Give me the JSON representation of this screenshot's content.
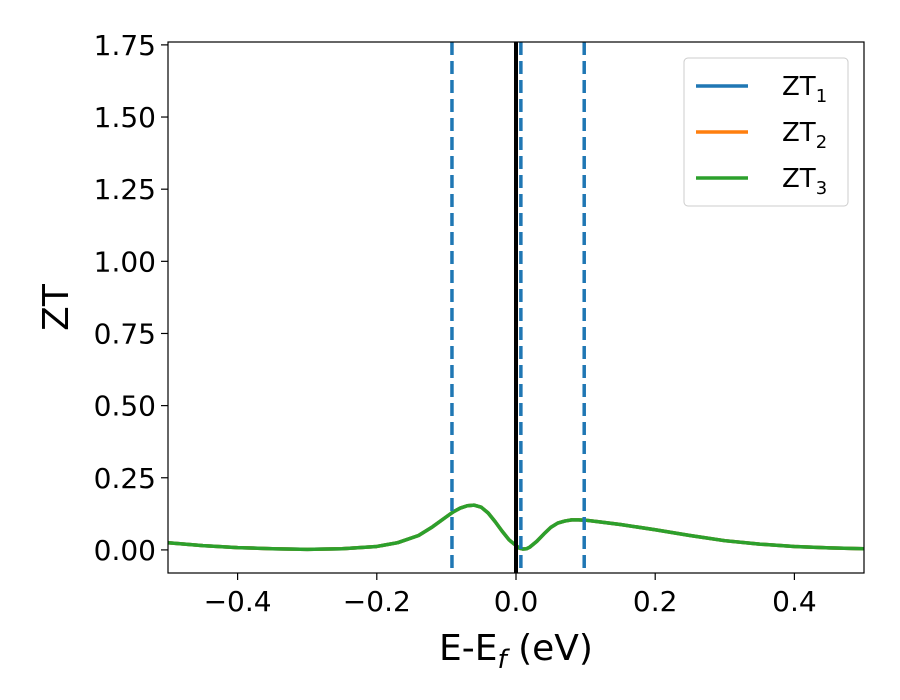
{
  "chart_data": {
    "type": "line",
    "title": "",
    "xlabel": "E-E",
    "xlabel_sub": "f",
    "xlabel_suffix": " (eV)",
    "ylabel": "ZT",
    "xlim": [
      -0.5,
      0.5
    ],
    "ylim": [
      -0.08,
      1.76
    ],
    "x_ticks": [
      -0.4,
      -0.2,
      0.0,
      0.2,
      0.4
    ],
    "x_tick_labels": [
      "−0.4",
      "−0.2",
      "0.0",
      "0.2",
      "0.4"
    ],
    "y_ticks": [
      0.0,
      0.25,
      0.5,
      0.75,
      1.0,
      1.25,
      1.5,
      1.75
    ],
    "y_tick_labels": [
      "0.00",
      "0.25",
      "0.50",
      "0.75",
      "1.00",
      "1.25",
      "1.50",
      "1.75"
    ],
    "grid": false,
    "legend_position": "top-right",
    "series": [
      {
        "name": "ZT",
        "sub": "1",
        "color": "#1f77b4",
        "x": [
          -0.5,
          -0.45,
          -0.4,
          -0.35,
          -0.3,
          -0.25,
          -0.2,
          -0.17,
          -0.14,
          -0.12,
          -0.1,
          -0.09,
          -0.08,
          -0.07,
          -0.06,
          -0.05,
          -0.04,
          -0.03,
          -0.02,
          -0.01,
          0.0,
          0.005,
          0.01,
          0.015,
          0.02,
          0.03,
          0.04,
          0.05,
          0.06,
          0.07,
          0.08,
          0.09,
          0.1,
          0.12,
          0.15,
          0.2,
          0.25,
          0.3,
          0.35,
          0.4,
          0.45,
          0.5
        ],
        "y": [
          0.025,
          0.015,
          0.008,
          0.004,
          0.002,
          0.004,
          0.012,
          0.025,
          0.05,
          0.08,
          0.115,
          0.132,
          0.145,
          0.153,
          0.155,
          0.148,
          0.128,
          0.098,
          0.065,
          0.035,
          0.015,
          0.006,
          0.003,
          0.004,
          0.01,
          0.03,
          0.055,
          0.078,
          0.093,
          0.1,
          0.104,
          0.104,
          0.103,
          0.097,
          0.088,
          0.07,
          0.05,
          0.032,
          0.02,
          0.012,
          0.007,
          0.004
        ]
      },
      {
        "name": "ZT",
        "sub": "2",
        "color": "#ff7f0e",
        "x": [
          -0.5,
          -0.45,
          -0.4,
          -0.35,
          -0.3,
          -0.25,
          -0.2,
          -0.17,
          -0.14,
          -0.12,
          -0.1,
          -0.09,
          -0.08,
          -0.07,
          -0.06,
          -0.05,
          -0.04,
          -0.03,
          -0.02,
          -0.01,
          0.0,
          0.005,
          0.01,
          0.015,
          0.02,
          0.03,
          0.04,
          0.05,
          0.06,
          0.07,
          0.08,
          0.09,
          0.1,
          0.12,
          0.15,
          0.2,
          0.25,
          0.3,
          0.35,
          0.4,
          0.45,
          0.5
        ],
        "y": [
          0.025,
          0.015,
          0.008,
          0.004,
          0.002,
          0.004,
          0.012,
          0.025,
          0.05,
          0.08,
          0.115,
          0.132,
          0.145,
          0.153,
          0.155,
          0.148,
          0.128,
          0.098,
          0.065,
          0.035,
          0.015,
          0.006,
          0.003,
          0.004,
          0.01,
          0.03,
          0.055,
          0.078,
          0.093,
          0.1,
          0.104,
          0.104,
          0.103,
          0.097,
          0.088,
          0.07,
          0.05,
          0.032,
          0.02,
          0.012,
          0.007,
          0.004
        ]
      },
      {
        "name": "ZT",
        "sub": "3",
        "color": "#2ca02c",
        "x": [
          -0.5,
          -0.45,
          -0.4,
          -0.35,
          -0.3,
          -0.25,
          -0.2,
          -0.17,
          -0.14,
          -0.12,
          -0.1,
          -0.09,
          -0.08,
          -0.07,
          -0.06,
          -0.05,
          -0.04,
          -0.03,
          -0.02,
          -0.01,
          0.0,
          0.005,
          0.01,
          0.015,
          0.02,
          0.03,
          0.04,
          0.05,
          0.06,
          0.07,
          0.08,
          0.09,
          0.1,
          0.12,
          0.15,
          0.2,
          0.25,
          0.3,
          0.35,
          0.4,
          0.45,
          0.5
        ],
        "y": [
          0.025,
          0.015,
          0.008,
          0.004,
          0.002,
          0.004,
          0.012,
          0.025,
          0.05,
          0.08,
          0.115,
          0.132,
          0.145,
          0.153,
          0.155,
          0.148,
          0.128,
          0.098,
          0.065,
          0.035,
          0.015,
          0.006,
          0.003,
          0.004,
          0.01,
          0.03,
          0.055,
          0.078,
          0.093,
          0.1,
          0.104,
          0.104,
          0.103,
          0.097,
          0.088,
          0.07,
          0.05,
          0.032,
          0.02,
          0.012,
          0.007,
          0.004
        ]
      }
    ],
    "vlines": [
      {
        "x": -0.092,
        "style": "dashed",
        "color": "#1f77b4"
      },
      {
        "x": 0.0,
        "style": "solid",
        "color": "#000000"
      },
      {
        "x": 0.007,
        "style": "dashed",
        "color": "#1f77b4"
      },
      {
        "x": 0.098,
        "style": "dashed",
        "color": "#1f77b4"
      }
    ]
  }
}
